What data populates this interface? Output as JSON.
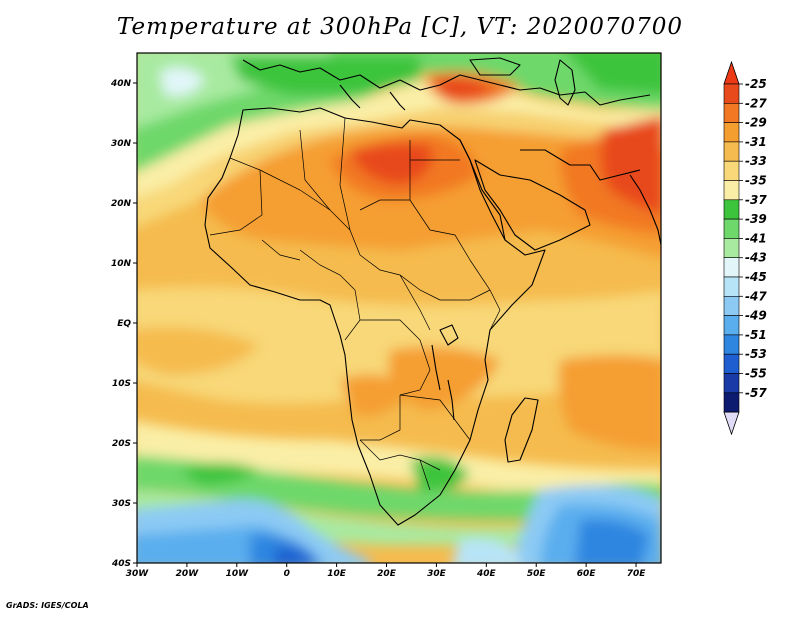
{
  "title": "Temperature at 300hPa [C], VT: 2020070700",
  "credit": "GrADS: IGES/COLA",
  "map": {
    "lon_range": [
      -30,
      75
    ],
    "lat_range": [
      -40,
      45
    ],
    "lon_ticks": [
      {
        "value": -30,
        "label": "30W"
      },
      {
        "value": -20,
        "label": "20W"
      },
      {
        "value": -10,
        "label": "10W"
      },
      {
        "value": 0,
        "label": "0"
      },
      {
        "value": 10,
        "label": "10E"
      },
      {
        "value": 20,
        "label": "20E"
      },
      {
        "value": 30,
        "label": "30E"
      },
      {
        "value": 40,
        "label": "40E"
      },
      {
        "value": 50,
        "label": "50E"
      },
      {
        "value": 60,
        "label": "60E"
      },
      {
        "value": 70,
        "label": "70E"
      }
    ],
    "lat_ticks": [
      {
        "value": 40,
        "label": "40N"
      },
      {
        "value": 30,
        "label": "30N"
      },
      {
        "value": 20,
        "label": "20N"
      },
      {
        "value": 10,
        "label": "10N"
      },
      {
        "value": 0,
        "label": "EQ"
      },
      {
        "value": -10,
        "label": "10S"
      },
      {
        "value": -20,
        "label": "20S"
      },
      {
        "value": -30,
        "label": "30S"
      },
      {
        "value": -40,
        "label": "40S"
      }
    ]
  },
  "colorbar": [
    {
      "label": "-25",
      "color": "#e84a1c"
    },
    {
      "label": "-27",
      "color": "#f27824"
    },
    {
      "label": "-29",
      "color": "#f59e30"
    },
    {
      "label": "-31",
      "color": "#f5bb4e"
    },
    {
      "label": "-33",
      "color": "#f8d878"
    },
    {
      "label": "-35",
      "color": "#faeea6"
    },
    {
      "label": "-37",
      "color": "#3cc43c"
    },
    {
      "label": "-39",
      "color": "#6ed86a"
    },
    {
      "label": "-41",
      "color": "#a8eaa0"
    },
    {
      "label": "-43",
      "color": "#e2f6fa"
    },
    {
      "label": "-45",
      "color": "#b8e4f8"
    },
    {
      "label": "-47",
      "color": "#8ccaf4"
    },
    {
      "label": "-49",
      "color": "#5aaeee"
    },
    {
      "label": "-51",
      "color": "#2e86e0"
    },
    {
      "label": "-53",
      "color": "#1e5ed0"
    },
    {
      "label": "-55",
      "color": "#1a3aa8"
    },
    {
      "label": "-57",
      "color": "#0c1a70"
    }
  ],
  "colorbar_ends": {
    "top": "#ec3a16",
    "bottom": "#e0dcf8"
  }
}
